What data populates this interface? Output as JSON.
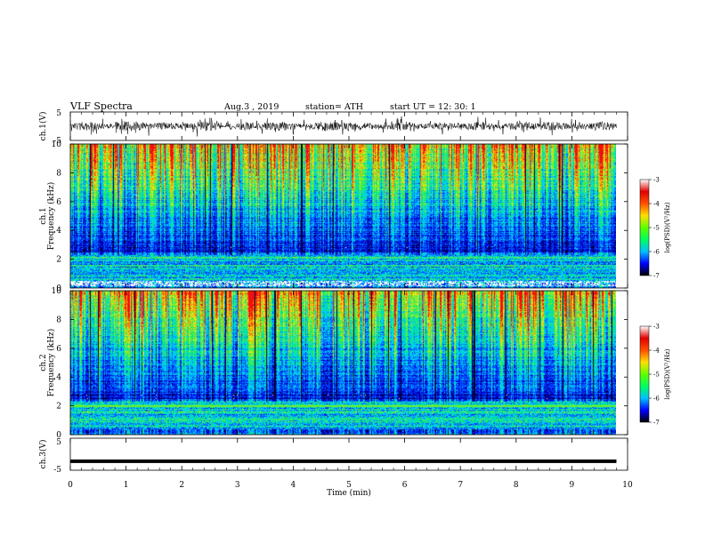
{
  "header": {
    "title": "VLF  Spectra",
    "date": "Aug.3   , 2019",
    "station": "station= ATH",
    "start_label": "start  UT  =",
    "start_time": "12: 30: 1"
  },
  "axes": {
    "xlabel": "Time  (min)",
    "ch1_wave_label": "ch.1(V)",
    "ch1_spec_label": "ch.1",
    "ch2_spec_label": "ch.2",
    "freq_label": "Frequency  (kHz)",
    "ch3_wave_label": "ch.3(V)",
    "colorbar_label": "log(PSD)(V²/Hz)"
  },
  "colors": {
    "waveform": "#000000",
    "spectrogram_scale": [
      "#00002a",
      "#0000c8",
      "#0050ff",
      "#00c8ff",
      "#00e890",
      "#66ee33",
      "#e6e61a",
      "#ff8c00",
      "#ee1111"
    ],
    "colorbar_stops": [
      "#000000",
      "#0000ff",
      "#00c0ff",
      "#00ff60",
      "#60ff00",
      "#ffe000",
      "#ff5000",
      "#e00000",
      "#ffffff"
    ]
  },
  "chart_data": [
    {
      "type": "line",
      "name": "ch1-waveform",
      "ylabel": "ch.1(V)",
      "xlim": [
        0,
        10
      ],
      "ylim": [
        -5,
        5
      ],
      "yticks": [
        "5",
        "-5"
      ],
      "data_extent_min": 9.8,
      "trace_center_v": 0.0,
      "trace_amplitude_v": 2.0,
      "grid": false
    },
    {
      "type": "heatmap",
      "name": "ch1-spectrogram",
      "ylabel": "Frequency  (kHz)",
      "xlim": [
        0,
        10
      ],
      "ylim": [
        0,
        10
      ],
      "yticks": [
        "0",
        "2",
        "4",
        "6",
        "8",
        "10"
      ],
      "colorbar": {
        "label": "log(PSD)(V²/Hz)",
        "range": [
          -7,
          -3
        ],
        "ticks": [
          "-3",
          "-4",
          "-5",
          "-6",
          "-7"
        ]
      },
      "data_extent_min": 9.8,
      "data_gap_khz": [
        0.0,
        0.1
      ]
    },
    {
      "type": "heatmap",
      "name": "ch2-spectrogram",
      "ylabel": "Frequency  (kHz)",
      "xlim": [
        0,
        10
      ],
      "ylim": [
        0,
        10
      ],
      "yticks": [
        "0",
        "2",
        "4",
        "6",
        "8",
        "10"
      ],
      "colorbar": {
        "label": "log(PSD)(V²/Hz)",
        "range": [
          -7,
          -3
        ],
        "ticks": [
          "-3",
          "-4",
          "-5",
          "-6",
          "-7"
        ]
      },
      "data_extent_min": 9.8,
      "line_khz": 2.0
    },
    {
      "type": "line",
      "name": "ch3-waveform",
      "ylabel": "ch.3(V)",
      "xlim": [
        0,
        10
      ],
      "ylim": [
        -5,
        5
      ],
      "yticks": [
        "5",
        "-5"
      ],
      "data_extent_min": 9.8,
      "trace_level_v": -2.2,
      "grid": false
    }
  ],
  "xaxis": {
    "ticks": [
      "0",
      "1",
      "2",
      "3",
      "4",
      "5",
      "6",
      "7",
      "8",
      "9",
      "10"
    ]
  }
}
